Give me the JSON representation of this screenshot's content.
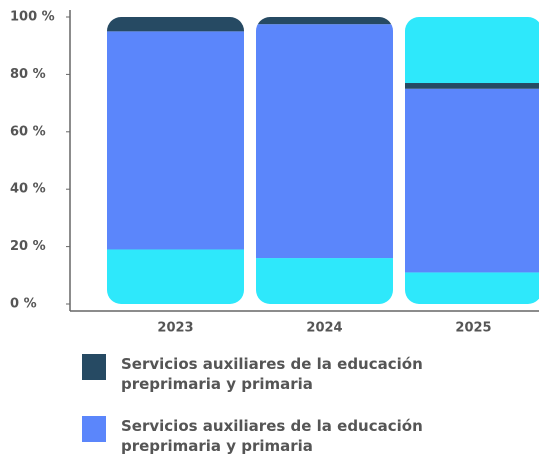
{
  "chart_data": {
    "type": "bar",
    "stacked": true,
    "categories": [
      "2023",
      "2024",
      "2025"
    ],
    "series": [
      {
        "color": "#2ee8fb",
        "values": [
          19,
          16,
          11
        ]
      },
      {
        "name": "Servicios auxiliares de la educación preprimaria y primaria",
        "color": "#5b86fb",
        "values": [
          76,
          81.5,
          64
        ]
      },
      {
        "name": "Servicios auxiliares de la educación preprimaria y primaria",
        "color": "#264a63",
        "values": [
          5,
          2.5,
          2
        ]
      },
      {
        "color": "#2ee8fb",
        "values": [
          null,
          null,
          23
        ]
      }
    ],
    "legend_order": [
      2,
      1
    ],
    "ylim": [
      0,
      100
    ],
    "yticks": [
      {
        "value": 0,
        "label": "0 %"
      },
      {
        "value": 20,
        "label": "20 %"
      },
      {
        "value": 40,
        "label": "40 %"
      },
      {
        "value": 60,
        "label": "60 %"
      },
      {
        "value": 80,
        "label": "80 %"
      },
      {
        "value": 100,
        "label": "100 %"
      }
    ],
    "grid": false
  }
}
